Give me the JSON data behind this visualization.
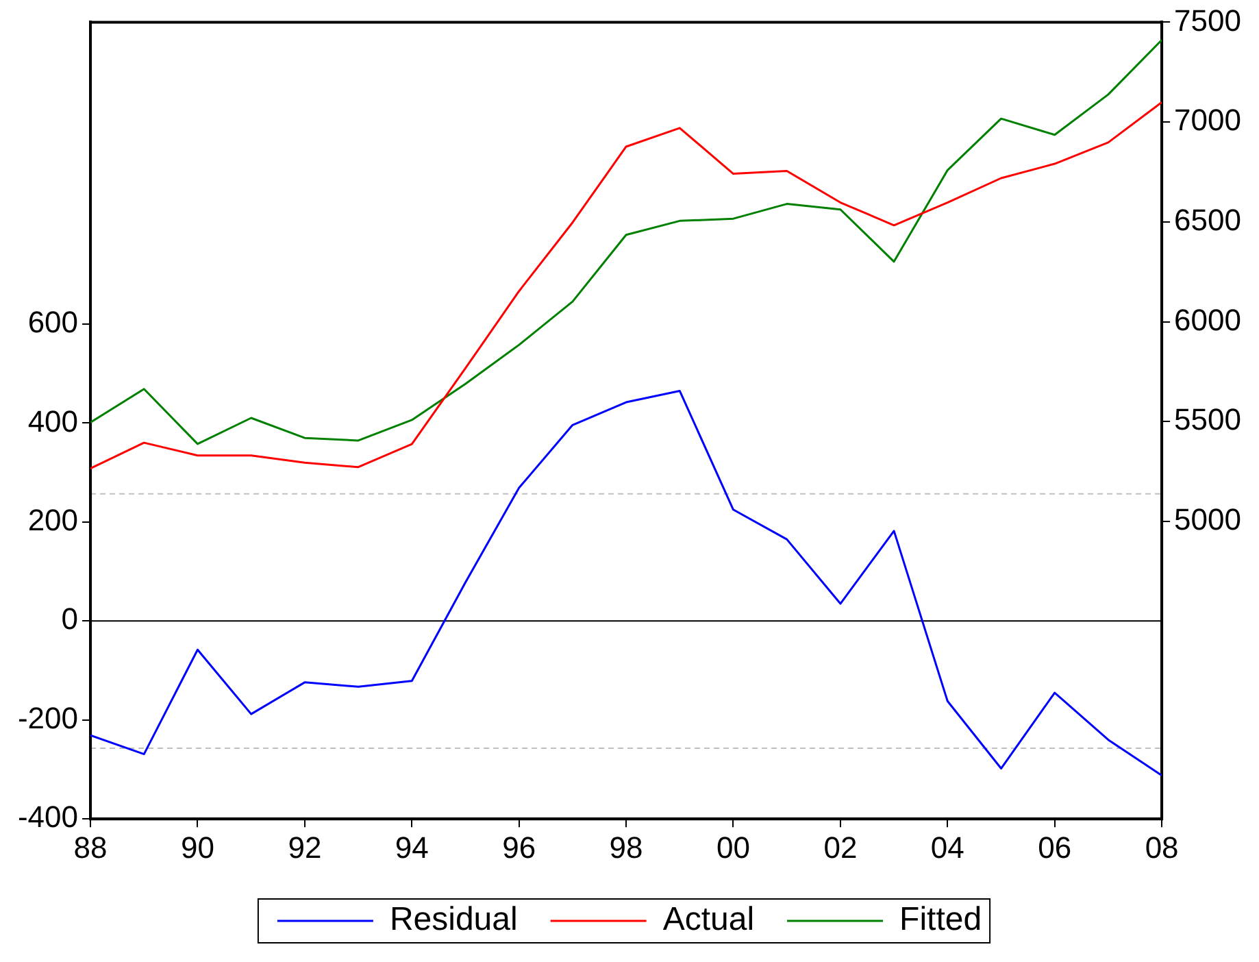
{
  "chart_data": {
    "type": "line",
    "x": [
      1988,
      1989,
      1990,
      1991,
      1992,
      1993,
      1994,
      1995,
      1996,
      1997,
      1998,
      1999,
      2000,
      2001,
      2002,
      2003,
      2004,
      2005,
      2006,
      2007,
      2008
    ],
    "xlim": [
      1988,
      2008
    ],
    "xticks": [
      {
        "value": 1988,
        "label": "88"
      },
      {
        "value": 1990,
        "label": "90"
      },
      {
        "value": 1992,
        "label": "92"
      },
      {
        "value": 1994,
        "label": "94"
      },
      {
        "value": 1996,
        "label": "96"
      },
      {
        "value": 1998,
        "label": "98"
      },
      {
        "value": 2000,
        "label": "00"
      },
      {
        "value": 2002,
        "label": "02"
      },
      {
        "value": 2004,
        "label": "04"
      },
      {
        "value": 2006,
        "label": "06"
      },
      {
        "value": 2008,
        "label": "08"
      }
    ],
    "ylim": [
      -400,
      1210
    ],
    "yticks": [
      -400,
      -200,
      0,
      200,
      400,
      600
    ],
    "y2lim": [
      3510,
      7500
    ],
    "y2ticks": [
      5000,
      5500,
      6000,
      6500,
      7000,
      7500
    ],
    "series": [
      {
        "name": "Residual",
        "color": "#0000ff",
        "values": [
          -231,
          -269,
          -58,
          -188,
          -124,
          -133,
          -121,
          78,
          269,
          396,
          442,
          465,
          225,
          165,
          35,
          182,
          -162,
          -298,
          -145,
          -240,
          -312
        ]
      },
      {
        "name": "Actual",
        "color": "#ff0000",
        "axis": "y2",
        "values": [
          5265,
          5394,
          5330,
          5330,
          5294,
          5272,
          5387,
          5767,
          6153,
          6497,
          6877,
          6970,
          6741,
          6755,
          6597,
          6483,
          6597,
          6719,
          6791,
          6898,
          7099
        ]
      },
      {
        "name": "Fitted",
        "color": "#008000",
        "axis": "y2",
        "values": [
          5496,
          5663,
          5388,
          5518,
          5418,
          5405,
          5508,
          5689,
          5884,
          6101,
          6435,
          6505,
          6516,
          6590,
          6562,
          6301,
          6759,
          7017,
          6936,
          7138,
          7411
        ]
      }
    ],
    "ref_lines": [
      {
        "axis": "y",
        "value": 0,
        "color": "#000000",
        "line_style": "solid"
      },
      {
        "axis": "y",
        "value": 257,
        "color": "#c0c0c0",
        "line_style": "dashed"
      },
      {
        "axis": "y",
        "value": -257,
        "color": "#c0c0c0",
        "line_style": "dashed"
      }
    ],
    "grid": false,
    "legend": "bottom",
    "marker": "none",
    "line_style": "solid"
  }
}
